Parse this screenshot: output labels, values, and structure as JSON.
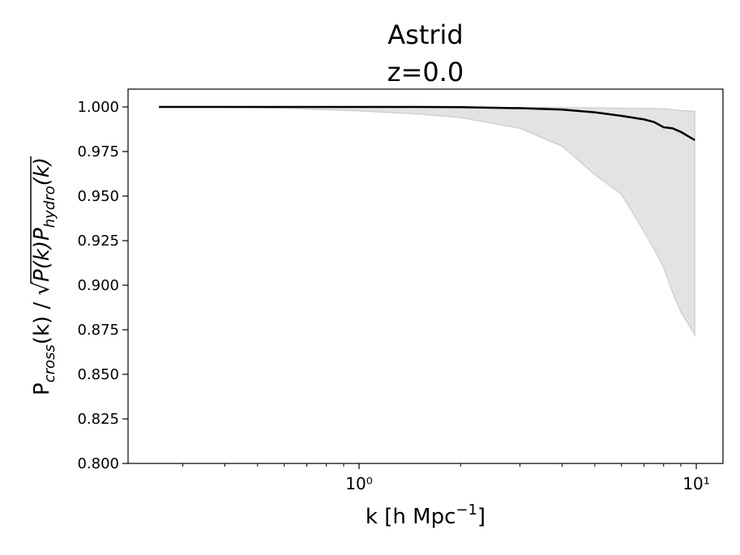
{
  "chart_data": {
    "type": "line",
    "title": [
      "Astrid",
      "z=0.0"
    ],
    "xlabel": [
      "k [h Mpc",
      "−1",
      "]"
    ],
    "ylabel": [
      "P",
      "cross",
      "(k) / √",
      "P(k)P",
      "hydro",
      "(k)"
    ],
    "xscale": "log",
    "xlim": [
      0.2065,
      12.0
    ],
    "ylim": [
      0.8,
      1.01
    ],
    "xticks": [
      {
        "value": 1,
        "label": "10⁰"
      },
      {
        "value": 10,
        "label": "10¹"
      }
    ],
    "xminorticks": [
      0.3,
      0.4,
      0.5,
      0.6,
      0.7,
      0.8,
      0.9,
      2,
      3,
      4,
      5,
      6,
      7,
      8,
      9
    ],
    "yticks": [
      {
        "value": 0.8,
        "label": "0.800"
      },
      {
        "value": 0.825,
        "label": "0.825"
      },
      {
        "value": 0.85,
        "label": "0.850"
      },
      {
        "value": 0.875,
        "label": "0.875"
      },
      {
        "value": 0.9,
        "label": "0.900"
      },
      {
        "value": 0.925,
        "label": "0.925"
      },
      {
        "value": 0.95,
        "label": "0.950"
      },
      {
        "value": 0.975,
        "label": "0.975"
      },
      {
        "value": 1,
        "label": "1.000"
      }
    ],
    "x": [
      0.255,
      0.4,
      0.6,
      1,
      1.5,
      2,
      3,
      4,
      5,
      6,
      7,
      7.5,
      8,
      8.5,
      9,
      9.9
    ],
    "series": [
      {
        "color": "#000000",
        "values": [
          1,
          1,
          1,
          1,
          1,
          0.9999,
          0.9993,
          0.9985,
          0.997,
          0.995,
          0.993,
          0.9915,
          0.9886,
          0.988,
          0.986,
          0.9814
        ]
      }
    ],
    "fill_between": {
      "color": "#e3e3e3",
      "edgecolor": "#cccccc",
      "lower": [
        1,
        0.9998,
        0.9993,
        0.9978,
        0.996,
        0.994,
        0.988,
        0.978,
        0.962,
        0.951,
        0.93,
        0.92,
        0.91,
        0.896,
        0.885,
        0.872
      ],
      "upper": [
        1,
        1,
        1,
        1,
        1,
        0.9998,
        0.9997,
        0.9996,
        0.9995,
        0.9993,
        0.9992,
        0.9991,
        0.999,
        0.9985,
        0.998,
        0.9975
      ]
    }
  }
}
